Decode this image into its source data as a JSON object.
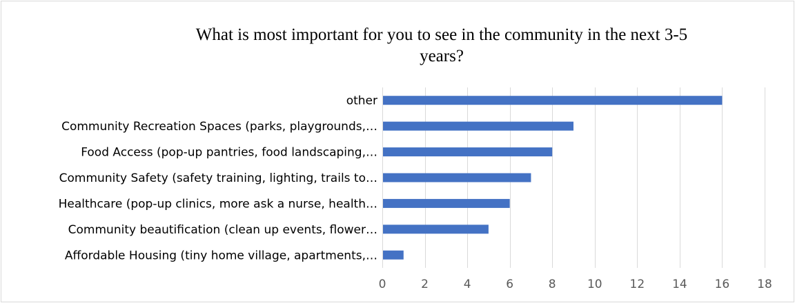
{
  "chart_data": {
    "type": "bar",
    "orientation": "horizontal",
    "title": "What is most important for you to see in the community in the next 3-5 years?",
    "title_lines": [
      "What is most important for you to see in the community in the next 3-5",
      "years?"
    ],
    "categories": [
      "other",
      "Community Recreation Spaces (parks, playgrounds,…",
      "Food Access (pop-up pantries, food landscaping,…",
      "Community Safety (safety training, lighting, trails to…",
      "Healthcare (pop-up clinics, more ask a nurse, health…",
      "Community beautification (clean up events, flower…",
      "Affordable Housing (tiny home village, apartments,…"
    ],
    "values": [
      16,
      9,
      8,
      7,
      6,
      5,
      1
    ],
    "xlim": [
      0,
      18
    ],
    "xticks": [
      0,
      2,
      4,
      6,
      8,
      10,
      12,
      14,
      16,
      18
    ],
    "xtick_labels": [
      "0",
      "2",
      "4",
      "6",
      "8",
      "10",
      "12",
      "14",
      "16",
      "18"
    ],
    "grid": true,
    "legend": "none",
    "bar_color": "#4472c4",
    "grid_color": "#d9d9d9"
  }
}
